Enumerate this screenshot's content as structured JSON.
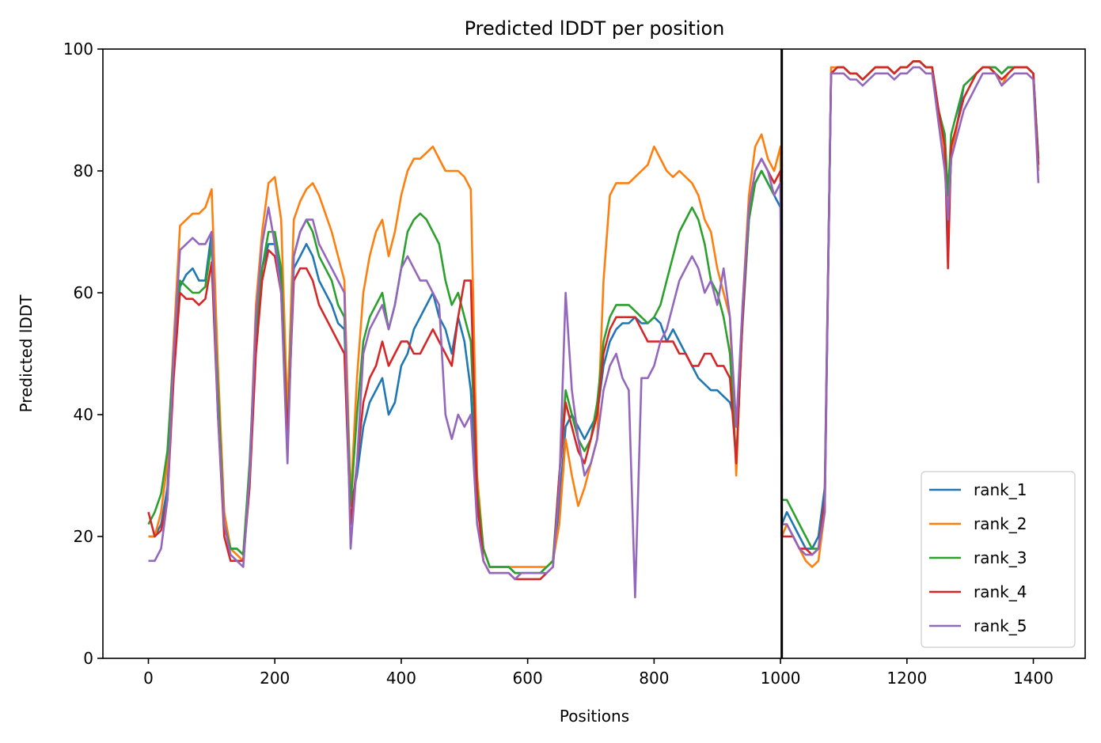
{
  "chart_data": {
    "type": "line",
    "title": "Predicted lDDT per position",
    "xlabel": "Positions",
    "ylabel": "Predicted lDDT",
    "xlim": [
      -72,
      1482
    ],
    "ylim": [
      0,
      100
    ],
    "xticks": [
      0,
      200,
      400,
      600,
      800,
      1000,
      1200,
      1400
    ],
    "yticks": [
      0,
      20,
      40,
      60,
      80,
      100
    ],
    "grid": false,
    "legend_position": "lower-right",
    "chain_boundary_x": 1002,
    "x": [
      0,
      10,
      20,
      30,
      40,
      50,
      60,
      70,
      80,
      90,
      100,
      110,
      120,
      130,
      140,
      150,
      160,
      170,
      180,
      190,
      200,
      210,
      220,
      230,
      240,
      250,
      260,
      270,
      280,
      290,
      300,
      310,
      320,
      330,
      340,
      350,
      360,
      370,
      380,
      390,
      400,
      410,
      420,
      430,
      440,
      450,
      460,
      470,
      480,
      490,
      500,
      510,
      520,
      530,
      540,
      550,
      560,
      570,
      580,
      590,
      600,
      610,
      620,
      630,
      640,
      650,
      660,
      670,
      680,
      690,
      700,
      710,
      720,
      730,
      740,
      750,
      760,
      770,
      780,
      790,
      800,
      810,
      820,
      830,
      840,
      850,
      860,
      870,
      880,
      890,
      900,
      910,
      920,
      930,
      940,
      950,
      960,
      970,
      980,
      990,
      1000,
      1002,
      1010,
      1020,
      1030,
      1040,
      1050,
      1060,
      1070,
      1080,
      1090,
      1100,
      1110,
      1120,
      1130,
      1140,
      1150,
      1160,
      1170,
      1180,
      1190,
      1200,
      1210,
      1220,
      1230,
      1240,
      1250,
      1260,
      1265,
      1270,
      1280,
      1290,
      1300,
      1310,
      1320,
      1330,
      1340,
      1350,
      1360,
      1370,
      1380,
      1390,
      1400,
      1408
    ],
    "series": [
      {
        "name": "rank_1",
        "color": "#1f77b4",
        "values": [
          20,
          20,
          22,
          28,
          48,
          61,
          63,
          64,
          62,
          62,
          70,
          42,
          22,
          18,
          18,
          17,
          30,
          52,
          64,
          68,
          68,
          62,
          40,
          64,
          66,
          68,
          66,
          62,
          60,
          58,
          55,
          54,
          25,
          30,
          38,
          42,
          44,
          46,
          40,
          42,
          48,
          50,
          54,
          56,
          58,
          60,
          56,
          54,
          50,
          56,
          52,
          44,
          25,
          18,
          15,
          15,
          15,
          15,
          14,
          14,
          14,
          14,
          14,
          15,
          16,
          25,
          38,
          40,
          38,
          36,
          38,
          40,
          48,
          52,
          54,
          55,
          55,
          56,
          55,
          55,
          56,
          55,
          52,
          54,
          52,
          50,
          48,
          46,
          45,
          44,
          44,
          43,
          42,
          38,
          55,
          72,
          78,
          80,
          78,
          76,
          74,
          22,
          24,
          22,
          20,
          18,
          18,
          20,
          28,
          96,
          97,
          97,
          96,
          96,
          95,
          96,
          97,
          97,
          97,
          96,
          97,
          97,
          98,
          98,
          97,
          97,
          90,
          85,
          70,
          82,
          88,
          94,
          95,
          96,
          97,
          97,
          97,
          96,
          97,
          97,
          97,
          97,
          96,
          82
        ]
      },
      {
        "name": "rank_2",
        "color": "#ff7f0e",
        "values": [
          20,
          20,
          24,
          32,
          52,
          71,
          72,
          73,
          73,
          74,
          77,
          48,
          24,
          18,
          17,
          16,
          30,
          58,
          70,
          78,
          79,
          72,
          40,
          72,
          75,
          77,
          78,
          76,
          73,
          70,
          66,
          62,
          26,
          46,
          60,
          66,
          70,
          72,
          66,
          70,
          76,
          80,
          82,
          82,
          83,
          84,
          82,
          80,
          80,
          80,
          79,
          77,
          30,
          18,
          15,
          15,
          15,
          15,
          15,
          15,
          15,
          15,
          15,
          15,
          16,
          22,
          36,
          30,
          25,
          28,
          32,
          36,
          62,
          76,
          78,
          78,
          78,
          79,
          80,
          81,
          84,
          82,
          80,
          79,
          80,
          79,
          78,
          76,
          72,
          70,
          64,
          60,
          56,
          30,
          58,
          76,
          84,
          86,
          82,
          80,
          84,
          20,
          22,
          20,
          18,
          16,
          15,
          16,
          24,
          97,
          97,
          97,
          96,
          96,
          95,
          96,
          97,
          97,
          97,
          96,
          97,
          97,
          98,
          98,
          97,
          97,
          88,
          82,
          74,
          82,
          88,
          92,
          94,
          96,
          97,
          97,
          96,
          94,
          96,
          97,
          97,
          97,
          96,
          80
        ]
      },
      {
        "name": "rank_3",
        "color": "#2ca02c",
        "values": [
          22,
          24,
          27,
          34,
          50,
          62,
          61,
          60,
          60,
          61,
          68,
          44,
          22,
          18,
          18,
          17,
          32,
          54,
          64,
          70,
          70,
          64,
          36,
          66,
          70,
          72,
          70,
          66,
          64,
          62,
          58,
          56,
          25,
          40,
          52,
          56,
          58,
          60,
          54,
          58,
          64,
          70,
          72,
          73,
          72,
          70,
          68,
          62,
          58,
          60,
          56,
          52,
          28,
          18,
          15,
          15,
          15,
          15,
          14,
          14,
          14,
          14,
          14,
          15,
          16,
          30,
          44,
          40,
          36,
          34,
          36,
          42,
          52,
          56,
          58,
          58,
          58,
          57,
          56,
          55,
          56,
          58,
          62,
          66,
          70,
          72,
          74,
          72,
          68,
          62,
          60,
          56,
          50,
          32,
          56,
          72,
          78,
          80,
          78,
          76,
          78,
          26,
          26,
          24,
          22,
          20,
          18,
          18,
          26,
          96,
          97,
          97,
          96,
          96,
          95,
          96,
          97,
          97,
          97,
          96,
          97,
          97,
          98,
          98,
          97,
          97,
          90,
          86,
          76,
          86,
          90,
          94,
          95,
          96,
          97,
          97,
          97,
          96,
          97,
          97,
          97,
          97,
          96,
          82
        ]
      },
      {
        "name": "rank_4",
        "color": "#d62728",
        "values": [
          24,
          20,
          21,
          26,
          46,
          60,
          59,
          59,
          58,
          59,
          65,
          40,
          20,
          16,
          16,
          16,
          28,
          50,
          62,
          67,
          66,
          60,
          36,
          62,
          64,
          64,
          62,
          58,
          56,
          54,
          52,
          50,
          22,
          32,
          42,
          46,
          48,
          52,
          48,
          50,
          52,
          52,
          50,
          50,
          52,
          54,
          52,
          50,
          48,
          56,
          62,
          62,
          26,
          16,
          14,
          14,
          14,
          14,
          13,
          13,
          13,
          13,
          13,
          14,
          15,
          30,
          42,
          38,
          34,
          32,
          36,
          40,
          50,
          54,
          56,
          56,
          56,
          56,
          54,
          52,
          52,
          52,
          52,
          52,
          50,
          50,
          48,
          48,
          50,
          50,
          48,
          48,
          46,
          32,
          56,
          74,
          80,
          82,
          80,
          78,
          80,
          20,
          20,
          20,
          18,
          18,
          17,
          18,
          26,
          96,
          97,
          97,
          96,
          96,
          95,
          96,
          97,
          97,
          97,
          96,
          97,
          97,
          98,
          98,
          97,
          97,
          90,
          84,
          64,
          84,
          88,
          92,
          94,
          96,
          97,
          97,
          96,
          95,
          96,
          97,
          97,
          97,
          96,
          81
        ]
      },
      {
        "name": "rank_5",
        "color": "#9467bd",
        "values": [
          16,
          16,
          18,
          26,
          50,
          67,
          68,
          69,
          68,
          68,
          70,
          40,
          22,
          17,
          16,
          15,
          30,
          56,
          68,
          74,
          68,
          60,
          32,
          66,
          70,
          72,
          72,
          68,
          66,
          64,
          62,
          60,
          18,
          32,
          50,
          54,
          56,
          58,
          54,
          58,
          64,
          66,
          64,
          62,
          62,
          60,
          58,
          40,
          36,
          40,
          38,
          40,
          22,
          16,
          14,
          14,
          14,
          14,
          13,
          14,
          14,
          14,
          14,
          14,
          15,
          28,
          60,
          44,
          36,
          30,
          32,
          36,
          44,
          48,
          50,
          46,
          44,
          10,
          46,
          46,
          48,
          52,
          54,
          58,
          62,
          64,
          66,
          64,
          60,
          62,
          58,
          64,
          56,
          38,
          58,
          74,
          80,
          82,
          80,
          76,
          78,
          22,
          22,
          20,
          18,
          17,
          17,
          18,
          24,
          96,
          96,
          96,
          95,
          95,
          94,
          95,
          96,
          96,
          96,
          95,
          96,
          96,
          97,
          97,
          96,
          96,
          88,
          80,
          72,
          82,
          86,
          90,
          92,
          94,
          96,
          96,
          96,
          94,
          95,
          96,
          96,
          96,
          95,
          78
        ]
      }
    ]
  }
}
